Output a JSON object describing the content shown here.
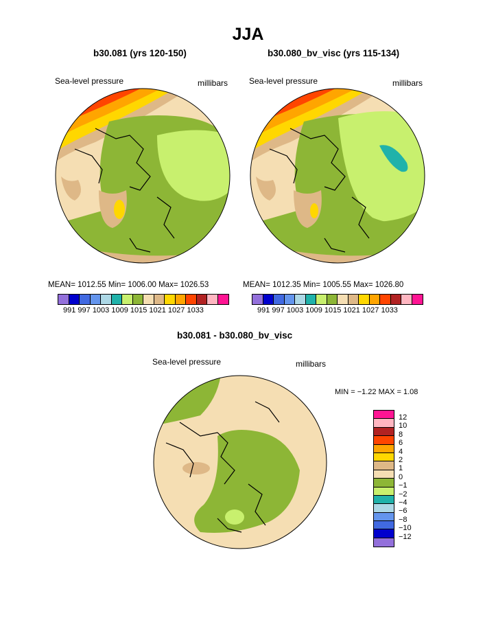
{
  "main_title": "JJA",
  "panels": [
    {
      "title": "b30.081 (yrs 120-150)",
      "field": "Sea-level pressure",
      "units": "millibars",
      "stats": "MEAN= 1012.55   Min= 1006.00   Max= 1026.53"
    },
    {
      "title": "b30.080_bv_visc (yrs 115-134)",
      "field": "Sea-level pressure",
      "units": "millibars",
      "stats": "MEAN= 1012.35   Min= 1005.55   Max= 1026.80"
    }
  ],
  "colorbar": {
    "colors": [
      "#9370db",
      "#0000cd",
      "#4169e1",
      "#6495ed",
      "#add8e6",
      "#20b2aa",
      "#c8f06e",
      "#8db636",
      "#f5deb3",
      "#deb887",
      "#ffd700",
      "#ffa500",
      "#ff4500",
      "#b22222",
      "#ffb6c1",
      "#ff1493"
    ],
    "labels": "991    997    1003   1009   1015   1021   1027   1033"
  },
  "diff": {
    "title": "b30.081 - b30.080_bv_visc",
    "field": "Sea-level pressure",
    "units": "millibars",
    "stats": "MIN =  −1.22  MAX =    1.08",
    "bar_colors": [
      "#ff1493",
      "#ffb6c1",
      "#b22222",
      "#ff4500",
      "#ffa500",
      "#ffd700",
      "#deb887",
      "#f5deb3",
      "#8db636",
      "#c8f06e",
      "#20b2aa",
      "#add8e6",
      "#6495ed",
      "#4169e1",
      "#0000cd",
      "#9370db"
    ],
    "bar_labels": [
      "12",
      "10",
      "8",
      "6",
      "4",
      "2",
      "1",
      "0",
      "−1",
      "−2",
      "−4",
      "−6",
      "−8",
      "−10",
      "−12"
    ]
  }
}
